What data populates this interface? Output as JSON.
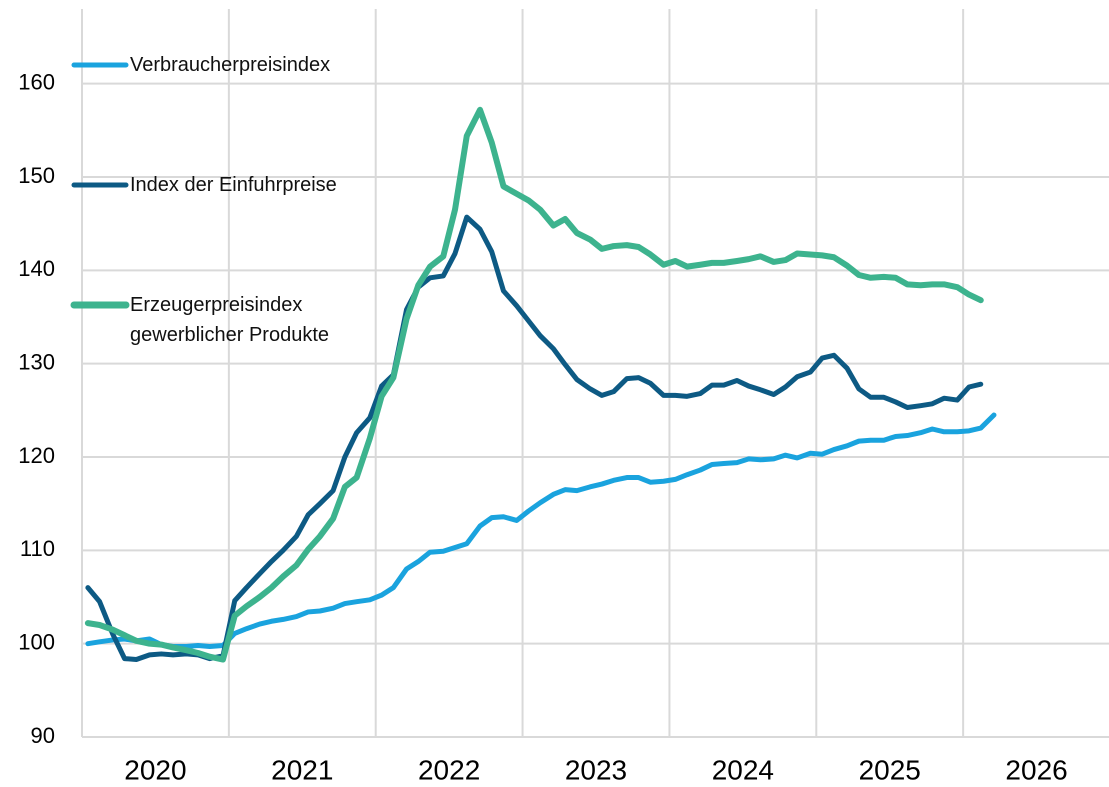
{
  "chart_data": {
    "type": "line",
    "x": [
      2020.04,
      2020.12,
      2020.21,
      2020.29,
      2020.37,
      2020.46,
      2020.54,
      2020.62,
      2020.71,
      2020.79,
      2020.87,
      2020.96,
      2021.04,
      2021.12,
      2021.21,
      2021.29,
      2021.37,
      2021.46,
      2021.54,
      2021.62,
      2021.71,
      2021.79,
      2021.87,
      2021.96,
      2022.04,
      2022.12,
      2022.21,
      2022.29,
      2022.37,
      2022.46,
      2022.54,
      2022.62,
      2022.71,
      2022.79,
      2022.87,
      2022.96,
      2023.04,
      2023.12,
      2023.21,
      2023.29,
      2023.37,
      2023.46,
      2023.54,
      2023.62,
      2023.71,
      2023.79,
      2023.87,
      2023.96,
      2024.04,
      2024.12,
      2024.21,
      2024.29,
      2024.37,
      2024.46,
      2024.54,
      2024.62,
      2024.71,
      2024.79,
      2024.87,
      2024.96,
      2025.04,
      2025.12,
      2025.21,
      2025.29,
      2025.37,
      2025.46,
      2025.54,
      2025.62,
      2025.71,
      2025.79,
      2025.87,
      2025.96,
      2026.04,
      2026.12,
      2026.21
    ],
    "series": [
      {
        "name": "Verbraucherpreisindex",
        "color": "#1aa3de",
        "values": [
          100.0,
          100.2,
          100.4,
          100.5,
          100.3,
          100.5,
          99.9,
          99.7,
          99.7,
          99.8,
          99.7,
          99.8,
          101.1,
          101.6,
          102.1,
          102.4,
          102.6,
          102.9,
          103.4,
          103.5,
          103.8,
          104.3,
          104.5,
          104.7,
          105.2,
          106.0,
          108.0,
          108.8,
          109.8,
          109.9,
          110.3,
          110.7,
          112.6,
          113.5,
          113.6,
          113.2,
          114.2,
          115.1,
          116.0,
          116.5,
          116.4,
          116.8,
          117.1,
          117.5,
          117.8,
          117.8,
          117.3,
          117.4,
          117.6,
          118.1,
          118.6,
          119.2,
          119.3,
          119.4,
          119.8,
          119.7,
          119.8,
          120.2,
          119.9,
          120.4,
          120.3,
          120.8,
          121.2,
          121.7,
          121.8,
          121.8,
          122.2,
          122.3,
          122.6,
          123.0,
          122.7,
          122.7,
          122.8,
          123.1,
          124.5
        ]
      },
      {
        "name": "Index der Einfuhrpreise",
        "color": "#0d5a84",
        "values": [
          106.0,
          104.5,
          101.0,
          98.4,
          98.3,
          98.8,
          98.9,
          98.8,
          98.9,
          98.8,
          98.4,
          98.7,
          104.6,
          106.0,
          107.5,
          108.8,
          110.0,
          111.5,
          113.8,
          115.0,
          116.4,
          120.0,
          122.6,
          124.2,
          127.6,
          128.8,
          135.8,
          138.2,
          139.2,
          139.4,
          141.8,
          145.7,
          144.4,
          142.0,
          137.8,
          136.2,
          134.6,
          133.0,
          131.6,
          129.9,
          128.3,
          127.3,
          126.6,
          127.0,
          128.4,
          128.5,
          127.9,
          126.6,
          126.6,
          126.5,
          126.8,
          127.7,
          127.7,
          128.2,
          127.6,
          127.2,
          126.7,
          127.5,
          128.6,
          129.1,
          130.6,
          130.9,
          129.5,
          127.3,
          126.4,
          126.4,
          125.9,
          125.3,
          125.5,
          125.7,
          126.3,
          126.1,
          127.5,
          127.8,
          null
        ]
      },
      {
        "name": "Erzeugerpreisindex gewerblicher Produkte",
        "color": "#3db38e",
        "values": [
          102.2,
          102.0,
          101.5,
          100.9,
          100.3,
          100.0,
          99.9,
          99.6,
          99.3,
          99.0,
          98.6,
          98.3,
          103.0,
          104.0,
          105.0,
          106.0,
          107.2,
          108.4,
          110.1,
          111.5,
          113.4,
          116.8,
          117.8,
          122.0,
          126.5,
          128.5,
          134.8,
          138.4,
          140.4,
          141.5,
          146.5,
          154.4,
          157.2,
          153.7,
          149.0,
          148.2,
          147.5,
          146.5,
          144.8,
          145.5,
          144.0,
          143.3,
          142.3,
          142.6,
          142.7,
          142.5,
          141.7,
          140.6,
          141.0,
          140.4,
          140.6,
          140.8,
          140.8,
          141.0,
          141.2,
          141.5,
          140.9,
          141.1,
          141.8,
          141.7,
          141.6,
          141.4,
          140.5,
          139.5,
          139.2,
          139.3,
          139.2,
          138.5,
          138.4,
          138.5,
          138.5,
          138.2,
          137.4,
          136.8,
          null
        ]
      }
    ],
    "xlim": [
      2020,
      2027
    ],
    "xticks": [
      2020,
      2021,
      2022,
      2023,
      2024,
      2025,
      2026
    ],
    "ylim": [
      90,
      168
    ],
    "yticks": [
      90,
      100,
      110,
      120,
      130,
      140,
      150,
      160
    ],
    "grid": true,
    "legend": "upper left"
  }
}
